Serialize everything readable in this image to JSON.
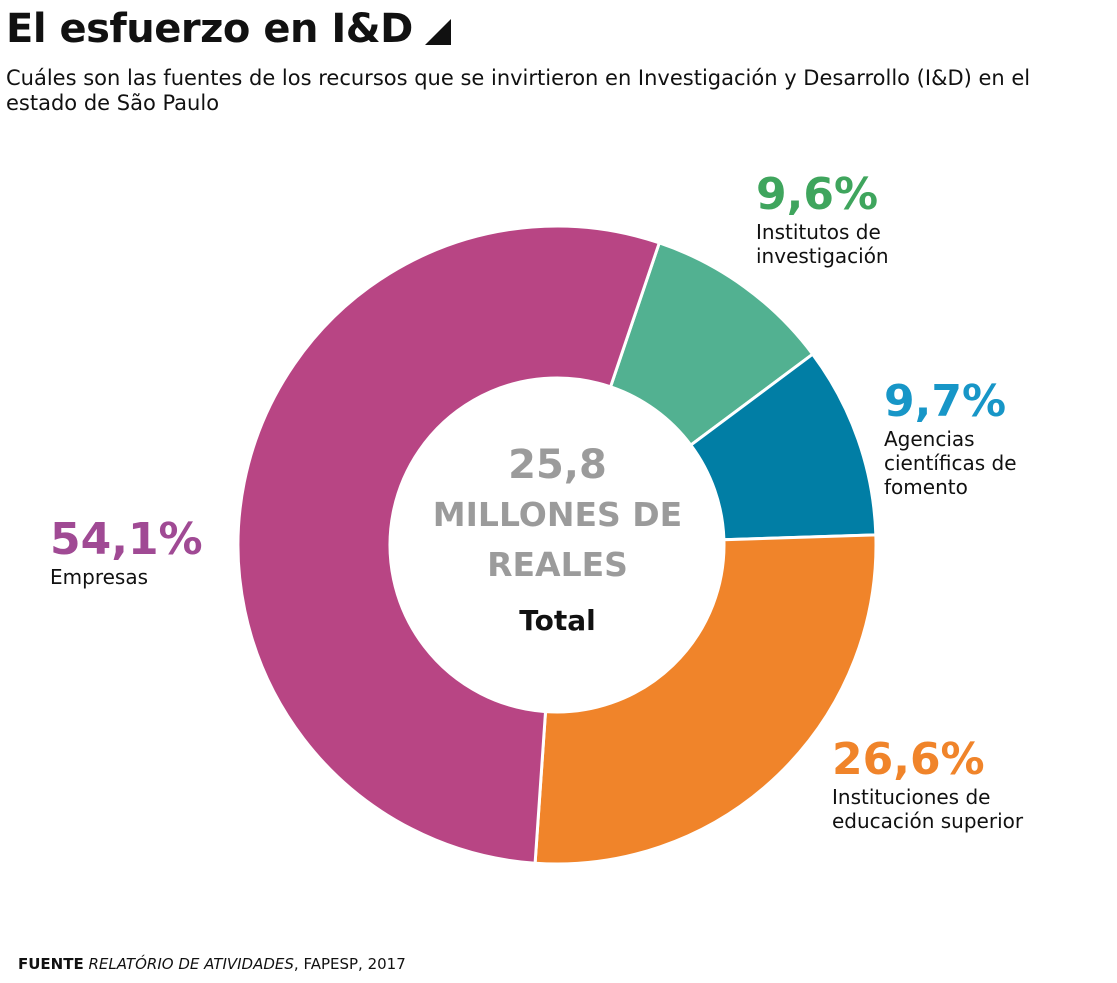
{
  "header": {
    "title": "El esfuerzo en I&D",
    "subtitle": "Cuáles son las fuentes de los recursos que se invirtieron en Investigación y Desarrollo (I&D) en el estado de São Paulo"
  },
  "chart_data": {
    "type": "pie",
    "donut": true,
    "center_value": "25,8",
    "center_unit": "MILLONES DE REALES",
    "center_caption": "Total",
    "slices": [
      {
        "label": "Institutos de investigación",
        "percent_label": "9,6%",
        "value": 9.6,
        "color": "#52b191",
        "label_color": "#3fa55d"
      },
      {
        "label": "Agencias científicas de fomento",
        "percent_label": "9,7%",
        "value": 9.7,
        "color": "#017ea5",
        "label_color": "#1796c7"
      },
      {
        "label": "Instituciones de educación superior",
        "percent_label": "26,6%",
        "value": 26.6,
        "color": "#f0842a",
        "label_color": "#f0842a"
      },
      {
        "label": "Empresas",
        "percent_label": "54,1%",
        "value": 54.1,
        "color": "#b84584",
        "label_color": "#a04a94"
      }
    ]
  },
  "footer": {
    "source_prefix": "FUENTE",
    "source_title": "RELATÓRIO DE ATIVIDADES",
    "source_rest": ", FAPESP, 2017"
  }
}
